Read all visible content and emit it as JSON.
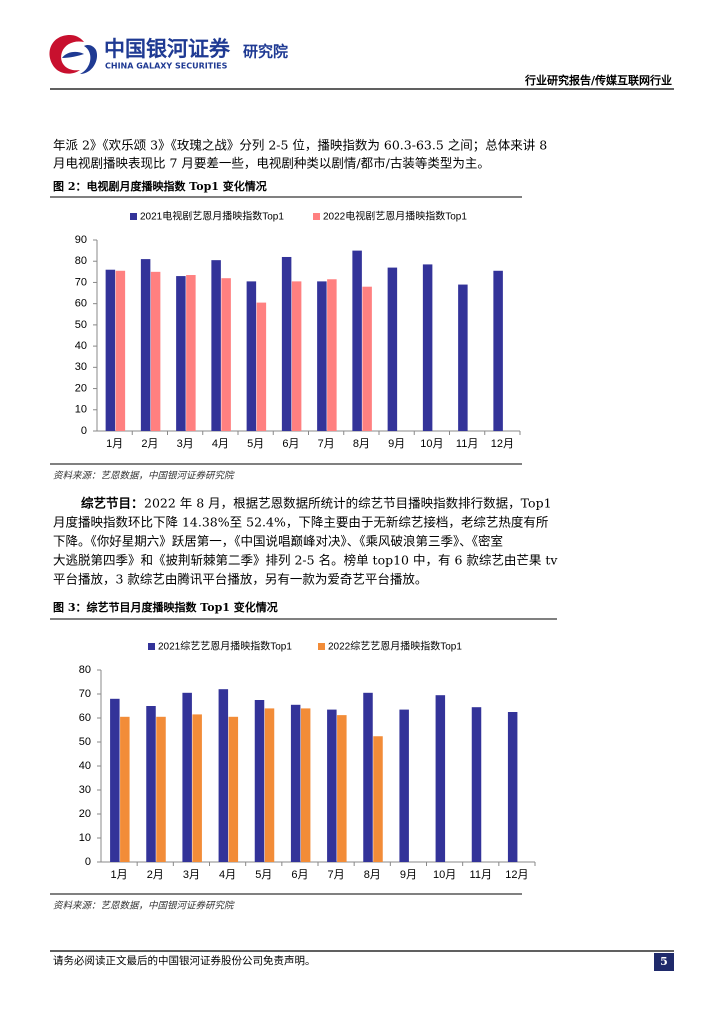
{
  "header": {
    "logo_cn": "中国银河证券",
    "logo_en": "CHINA GALAXY SECURITIES",
    "institute": "研究院",
    "report_type": "行业研究报告/传媒互联网行业"
  },
  "paragraphs": [
    {
      "lines": [
        "年派 2》《欢乐颂 3》《玫瑰之战》分列 2-5 位，播映指数为 60.3-63.5 之间；总体来讲 8",
        "月电视剧播映表现比 7 月要差一些，电视剧种类以剧情/都市/古装等类型为主。"
      ]
    },
    {
      "lead": "综艺节目：",
      "lines": [
        "2022 年 8 月，根据艺恩数据所统计的综艺节目播映指数排行数据，Top1",
        "月度播映指数环比下降 14.38%至 52.4%，下降主要由于无新综艺接档，老综艺热度有所",
        "下降。《你好星期六》跃居第一，《中国说唱巅峰对决》、《乘风破浪第三季》、《密室",
        "大逃脱第四季》和《披荆斩棘第二季》排列 2-5 名。榜单 top10 中，有 6 款综艺由芒果 tv",
        "平台播放，3 款综艺由腾讯平台播放，另有一款为爱奇艺平台播放。"
      ]
    }
  ],
  "figures": [
    {
      "caption": "图 2：电视剧月度播映指数 Top1 变化情况",
      "source": "资料来源：艺恩数据，中国银河证券研究院"
    },
    {
      "caption": "图 3：综艺节目月度播映指数 Top1 变化情况",
      "source": "资料来源：艺恩数据，中国银河证券研究院"
    }
  ],
  "chart_data": [
    {
      "type": "bar",
      "categories": [
        "1月",
        "2月",
        "3月",
        "4月",
        "5月",
        "6月",
        "7月",
        "8月",
        "9月",
        "10月",
        "11月",
        "12月"
      ],
      "series": [
        {
          "name": "2021电视剧艺恩月播映指数Top1",
          "color": "#333399",
          "values": [
            76,
            81,
            73,
            80.5,
            70.5,
            82,
            70.5,
            85,
            77,
            78.5,
            69,
            75.5
          ]
        },
        {
          "name": "2022电视剧艺恩月播映指数Top1",
          "color": "#ff8080",
          "values": [
            75.5,
            75,
            73.5,
            72,
            60.5,
            70.5,
            71.5,
            68,
            null,
            null,
            null,
            null
          ]
        }
      ],
      "ylim": [
        0,
        90
      ],
      "yticks": [
        0,
        10,
        20,
        30,
        40,
        50,
        60,
        70,
        80,
        90
      ],
      "grid": false,
      "legend": "top"
    },
    {
      "type": "bar",
      "categories": [
        "1月",
        "2月",
        "3月",
        "4月",
        "5月",
        "6月",
        "7月",
        "8月",
        "9月",
        "10月",
        "11月",
        "12月"
      ],
      "series": [
        {
          "name": "2021综艺艺恩月播映指数Top1",
          "color": "#333399",
          "values": [
            68,
            65,
            70.5,
            72,
            67.5,
            65.5,
            63.5,
            70.5,
            63.5,
            69.5,
            64.5,
            62.5
          ]
        },
        {
          "name": "2022综艺艺恩月播映指数Top1",
          "color": "#f28c38",
          "values": [
            60.5,
            60.5,
            61.5,
            60.5,
            64,
            64,
            61.2,
            52.4,
            null,
            null,
            null,
            null
          ]
        }
      ],
      "ylim": [
        0,
        80
      ],
      "yticks": [
        0,
        10,
        20,
        30,
        40,
        50,
        60,
        70,
        80
      ],
      "grid": false,
      "legend": "top"
    }
  ],
  "footer": {
    "disclaimer": "请务必阅读正文最后的中国银河证券股份公司免责声明。",
    "page": "5"
  }
}
